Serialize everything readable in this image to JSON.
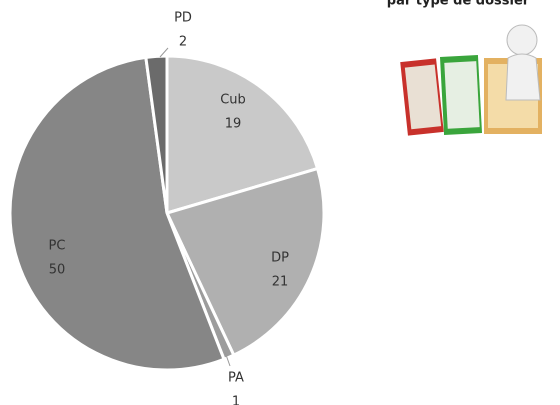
{
  "chart_data": {
    "type": "pie",
    "title": "par type de dossier",
    "categories": [
      "Cub",
      "DP",
      "PA",
      "PC",
      "PD"
    ],
    "values": [
      19,
      21,
      1,
      50,
      2
    ],
    "colors": [
      "#c9c9c9",
      "#b0b0b0",
      "#9c9c9c",
      "#868686",
      "#6b6b6b"
    ]
  }
}
